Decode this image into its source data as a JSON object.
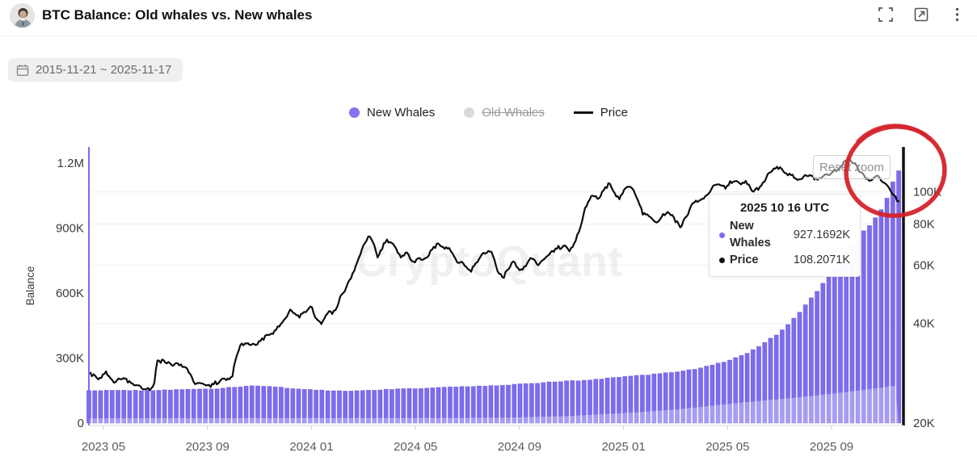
{
  "header": {
    "title": "BTC Balance: Old whales vs. New whales",
    "icons": [
      "fullscreen-icon",
      "open-in-new-icon",
      "kebab-menu-icon"
    ]
  },
  "toolbar": {
    "date_range": "2015-11-21 ~ 2025-11-17"
  },
  "legend": [
    {
      "label": "New Whales",
      "marker": "dot",
      "color": "#8274f1",
      "active": true
    },
    {
      "label": "Old Whales",
      "marker": "dot",
      "color": "#d9d9de",
      "active": false
    },
    {
      "label": "Price",
      "marker": "line",
      "color": "#111111",
      "active": true
    }
  ],
  "reset_zoom_label": "Reset zoom",
  "watermark": "CryptoQuant",
  "tooltip": {
    "title": "2025 10 16 UTC",
    "rows": [
      {
        "label": "New Whales",
        "value": "927.1692K",
        "color": "#7d6cf1"
      },
      {
        "label": "Price",
        "value": "108.2071K",
        "color": "#111111"
      }
    ]
  },
  "annotation": {
    "type": "hand-drawn-circle",
    "color": "#d5232b"
  },
  "chart_data": {
    "type": "bar+line combo",
    "title": "BTC Balance: Old whales vs. New whales",
    "left_axis": {
      "label": "Balance",
      "scale": "linear",
      "unit": "BTC",
      "ticks": [
        {
          "v": 0,
          "label": "0"
        },
        {
          "v": 300,
          "label": "300K"
        },
        {
          "v": 600,
          "label": "600K"
        },
        {
          "v": 900,
          "label": "900K"
        },
        {
          "v": 1200,
          "label": "1.2M"
        }
      ]
    },
    "right_axis": {
      "label": "",
      "scale": "log",
      "unit": "USD",
      "ticks": [
        {
          "v": 20,
          "label": "20K"
        },
        {
          "v": 40,
          "label": "40K"
        },
        {
          "v": 60,
          "label": "60K"
        },
        {
          "v": 80,
          "label": "80K"
        },
        {
          "v": 100,
          "label": "100K"
        }
      ]
    },
    "x_ticks": [
      {
        "m": 2,
        "label": "2023 05"
      },
      {
        "m": 6,
        "label": "2023 09"
      },
      {
        "m": 10,
        "label": "2024 01"
      },
      {
        "m": 14,
        "label": "2024 05"
      },
      {
        "m": 18,
        "label": "2024 09"
      },
      {
        "m": 22,
        "label": "2025 01"
      },
      {
        "m": 26,
        "label": "2025 05"
      },
      {
        "m": 30,
        "label": "2025 09"
      }
    ],
    "x_range": {
      "start_m": 1.44,
      "end_m": 32.58,
      "m0_date": "2023-03"
    },
    "series": [
      {
        "name": "New Whales",
        "type": "bar",
        "axis": "left",
        "color": "#7d6cf1",
        "unit": "K BTC",
        "keyframes": [
          [
            1.44,
            150
          ],
          [
            2.5,
            152
          ],
          [
            3.5,
            150
          ],
          [
            4.5,
            153
          ],
          [
            5.5,
            156
          ],
          [
            6.5,
            160
          ],
          [
            7.2,
            168
          ],
          [
            7.8,
            172
          ],
          [
            8.4,
            170
          ],
          [
            9.2,
            160
          ],
          [
            10.0,
            153
          ],
          [
            10.8,
            149
          ],
          [
            11.5,
            148
          ],
          [
            12.5,
            153
          ],
          [
            13.5,
            158
          ],
          [
            14.5,
            162
          ],
          [
            15.5,
            166
          ],
          [
            16.5,
            170
          ],
          [
            17.5,
            175
          ],
          [
            18.0,
            180
          ],
          [
            18.8,
            186
          ],
          [
            19.5,
            191
          ],
          [
            20.2,
            196
          ],
          [
            21.0,
            203
          ],
          [
            21.8,
            210
          ],
          [
            22.5,
            218
          ],
          [
            23.2,
            226
          ],
          [
            24.0,
            236
          ],
          [
            24.7,
            248
          ],
          [
            25.4,
            266
          ],
          [
            26.0,
            288
          ],
          [
            26.6,
            315
          ],
          [
            27.2,
            352
          ],
          [
            27.8,
            400
          ],
          [
            28.4,
            462
          ],
          [
            29.0,
            545
          ],
          [
            29.5,
            615
          ],
          [
            30.0,
            700
          ],
          [
            30.5,
            775
          ],
          [
            31.0,
            855
          ],
          [
            31.53,
            927.1692
          ],
          [
            31.9,
            990
          ],
          [
            32.2,
            1065
          ],
          [
            32.45,
            1130
          ],
          [
            32.58,
            1175
          ]
        ]
      },
      {
        "name": "Price",
        "type": "line",
        "axis": "right",
        "color": "#0d0d0d",
        "unit": "K USD",
        "keyframes": [
          [
            1.44,
            28.5
          ],
          [
            1.8,
            27.2
          ],
          [
            2.1,
            28.3
          ],
          [
            2.4,
            26.6
          ],
          [
            2.8,
            27.4
          ],
          [
            3.1,
            26.2
          ],
          [
            3.5,
            25.6
          ],
          [
            3.75,
            25.1
          ],
          [
            3.95,
            26.0
          ],
          [
            4.05,
            30.4
          ],
          [
            4.3,
            30.8
          ],
          [
            4.6,
            29.9
          ],
          [
            4.9,
            30.2
          ],
          [
            5.2,
            29.4
          ],
          [
            5.5,
            26.3
          ],
          [
            5.8,
            26.1
          ],
          [
            6.1,
            25.9
          ],
          [
            6.4,
            26.6
          ],
          [
            6.7,
            27.0
          ],
          [
            6.95,
            27.5
          ],
          [
            7.1,
            31.5
          ],
          [
            7.25,
            34.2
          ],
          [
            7.5,
            34.8
          ],
          [
            7.75,
            34.3
          ],
          [
            8.0,
            35.5
          ],
          [
            8.3,
            36.8
          ],
          [
            8.6,
            37.8
          ],
          [
            8.9,
            40.5
          ],
          [
            9.2,
            43.8
          ],
          [
            9.5,
            42.0
          ],
          [
            9.8,
            43.5
          ],
          [
            10.0,
            45.0
          ],
          [
            10.15,
            42.0
          ],
          [
            10.35,
            39.6
          ],
          [
            10.6,
            42.8
          ],
          [
            10.9,
            43.2
          ],
          [
            11.1,
            47.5
          ],
          [
            11.35,
            51.5
          ],
          [
            11.6,
            57.0
          ],
          [
            11.8,
            62.5
          ],
          [
            12.0,
            68.5
          ],
          [
            12.2,
            73.5
          ],
          [
            12.4,
            69.0
          ],
          [
            12.55,
            63.0
          ],
          [
            12.8,
            70.0
          ],
          [
            13.0,
            71.5
          ],
          [
            13.2,
            67.5
          ],
          [
            13.45,
            63.5
          ],
          [
            13.7,
            65.5
          ],
          [
            13.9,
            60.5
          ],
          [
            14.1,
            63.0
          ],
          [
            14.35,
            62.0
          ],
          [
            14.6,
            67.0
          ],
          [
            14.85,
            69.5
          ],
          [
            15.1,
            68.0
          ],
          [
            15.35,
            66.5
          ],
          [
            15.6,
            61.5
          ],
          [
            15.85,
            60.5
          ],
          [
            16.1,
            57.5
          ],
          [
            16.35,
            61.0
          ],
          [
            16.6,
            65.0
          ],
          [
            16.8,
            66.5
          ],
          [
            17.0,
            64.0
          ],
          [
            17.15,
            57.5
          ],
          [
            17.35,
            54.5
          ],
          [
            17.6,
            59.0
          ],
          [
            17.8,
            61.5
          ],
          [
            18.0,
            57.5
          ],
          [
            18.2,
            59.5
          ],
          [
            18.45,
            63.5
          ],
          [
            18.7,
            60.0
          ],
          [
            18.95,
            62.0
          ],
          [
            19.2,
            65.5
          ],
          [
            19.45,
            67.5
          ],
          [
            19.7,
            68.5
          ],
          [
            19.9,
            66.0
          ],
          [
            20.1,
            69.5
          ],
          [
            20.3,
            76.0
          ],
          [
            20.55,
            90.0
          ],
          [
            20.8,
            98.0
          ],
          [
            21.0,
            95.0
          ],
          [
            21.2,
            101.0
          ],
          [
            21.45,
            106.0
          ],
          [
            21.65,
            99.5
          ],
          [
            21.85,
            94.5
          ],
          [
            22.05,
            102.5
          ],
          [
            22.25,
            104.5
          ],
          [
            22.5,
            96.5
          ],
          [
            22.75,
            86.0
          ],
          [
            23.0,
            84.5
          ],
          [
            23.2,
            80.5
          ],
          [
            23.45,
            83.5
          ],
          [
            23.7,
            87.0
          ],
          [
            23.95,
            82.5
          ],
          [
            24.2,
            78.0
          ],
          [
            24.45,
            85.0
          ],
          [
            24.7,
            93.5
          ],
          [
            24.95,
            94.5
          ],
          [
            25.2,
            97.0
          ],
          [
            25.45,
            103.5
          ],
          [
            25.7,
            105.0
          ],
          [
            25.95,
            103.0
          ],
          [
            26.2,
            108.5
          ],
          [
            26.45,
            105.0
          ],
          [
            26.7,
            107.5
          ],
          [
            26.95,
            100.5
          ],
          [
            27.2,
            102.0
          ],
          [
            27.45,
            108.5
          ],
          [
            27.7,
            117.5
          ],
          [
            27.95,
            119.0
          ],
          [
            28.2,
            114.5
          ],
          [
            28.45,
            112.0
          ],
          [
            28.7,
            108.5
          ],
          [
            28.95,
            111.0
          ],
          [
            29.2,
            112.5
          ],
          [
            29.45,
            108.5
          ],
          [
            29.7,
            111.5
          ],
          [
            29.95,
            114.0
          ],
          [
            30.2,
            116.0
          ],
          [
            30.45,
            121.0
          ],
          [
            30.65,
            125.5
          ],
          [
            30.85,
            122.0
          ],
          [
            31.1,
            115.0
          ],
          [
            31.3,
            110.5
          ],
          [
            31.53,
            108.2071
          ],
          [
            31.7,
            112.0
          ],
          [
            31.85,
            110.0
          ],
          [
            32.0,
            106.0
          ],
          [
            32.15,
            103.5
          ],
          [
            32.3,
            99.5
          ],
          [
            32.45,
            96.5
          ],
          [
            32.58,
            93.0
          ]
        ]
      },
      {
        "name": "light-overlay",
        "type": "area-overlay",
        "axis": "left",
        "color": "rgba(255,255,255,0.33)",
        "keyframes": [
          [
            1.44,
            22
          ],
          [
            10,
            23
          ],
          [
            16,
            24
          ],
          [
            18,
            26
          ],
          [
            20,
            33
          ],
          [
            22,
            46
          ],
          [
            24,
            62
          ],
          [
            26,
            88
          ],
          [
            27.5,
            105
          ],
          [
            29,
            122
          ],
          [
            30,
            135
          ],
          [
            31,
            150
          ],
          [
            32,
            165
          ],
          [
            32.58,
            175
          ]
        ]
      }
    ]
  }
}
